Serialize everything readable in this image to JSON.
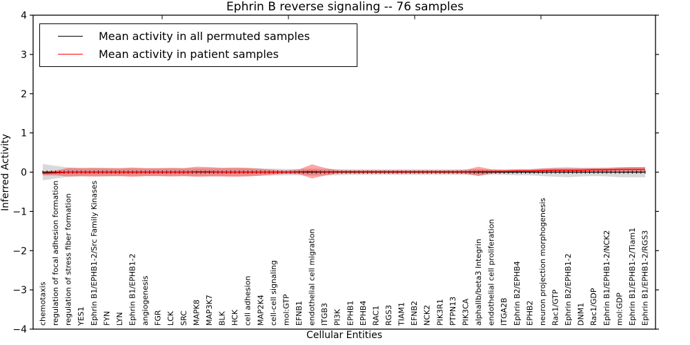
{
  "chart_data": {
    "type": "line",
    "title": "Ephrin B reverse signaling -- 76 samples",
    "xlabel": "Cellular Entities",
    "ylabel": "Inferred Activity",
    "ylim": [
      -4,
      4
    ],
    "yticks": [
      4,
      3,
      2,
      1,
      0,
      -1,
      -2,
      -3,
      -4
    ],
    "grid": false,
    "legend_position": "upper left",
    "categories": [
      "chemotaxis",
      "regulation of focal adhesion formation",
      "regulation of stress fiber formation",
      "YES1",
      "Ephrin B1/EPHB1-2/Src Family Kinases",
      "FYN",
      "LYN",
      "Ephrin B1/EPHB1-2",
      "angiogenesis",
      "FGR",
      "LCK",
      "SRC",
      "MAPK8",
      "MAP3K7",
      "BLK",
      "HCK",
      "cell adhesion",
      "MAP2K4",
      "cell-cell signaling",
      "mol:GTP",
      "EFNB1",
      "endothelial cell migration",
      "ITGB3",
      "PI3K",
      "EPHB1",
      "EPHB4",
      "RAC1",
      "RGS3",
      "TIAM1",
      "EFNB2",
      "NCK2",
      "PIK3R1",
      "PTPN13",
      "PIK3CA",
      "alphaIIb/beta3 Integrin",
      "endothelial cell proliferation",
      "ITGA2B",
      "Ephrin B2/EPHB4",
      "EPHB2",
      "neuron projection morphogenesis",
      "Rac1/GTP",
      "Ephrin B2/EPHB1-2",
      "DNM1",
      "Rac1/GDP",
      "Ephrin B1/EPHB1-2/NCK2",
      "mol:GDP",
      "Ephrin B1/EPHB1-2/Tiam1",
      "Ephrin B1/EPHB1-2/RGS3"
    ],
    "series": [
      {
        "name": "Mean activity in all permuted samples",
        "color": "#000000",
        "band_color": "rgba(0,0,0,0.15)",
        "mean": [
          0,
          0,
          0,
          0,
          0,
          0,
          0,
          0,
          0,
          0,
          0,
          0,
          0,
          0,
          0,
          0,
          0,
          0,
          0,
          0,
          0,
          0,
          0,
          0,
          0,
          0,
          0,
          0,
          0,
          0,
          0,
          0,
          0,
          0,
          0,
          0,
          0,
          0,
          0,
          0,
          0,
          0,
          0,
          0,
          0,
          0,
          0,
          0
        ],
        "upper": [
          0.21,
          0.16,
          0.12,
          0.11,
          0.11,
          0.11,
          0.1,
          0.1,
          0.1,
          0.1,
          0.1,
          0.1,
          0.1,
          0.1,
          0.1,
          0.1,
          0.1,
          0.09,
          0.09,
          0.08,
          0.08,
          0.09,
          0.08,
          0.08,
          0.07,
          0.07,
          0.07,
          0.07,
          0.07,
          0.07,
          0.07,
          0.07,
          0.07,
          0.07,
          0.08,
          0.07,
          0.07,
          0.08,
          0.08,
          0.1,
          0.12,
          0.13,
          0.11,
          0.1,
          0.11,
          0.13,
          0.13,
          0.13
        ],
        "lower": [
          -0.21,
          -0.16,
          -0.12,
          -0.11,
          -0.11,
          -0.11,
          -0.1,
          -0.1,
          -0.1,
          -0.1,
          -0.1,
          -0.1,
          -0.1,
          -0.1,
          -0.1,
          -0.1,
          -0.1,
          -0.09,
          -0.09,
          -0.08,
          -0.08,
          -0.09,
          -0.08,
          -0.08,
          -0.07,
          -0.07,
          -0.07,
          -0.07,
          -0.07,
          -0.07,
          -0.07,
          -0.07,
          -0.07,
          -0.07,
          -0.08,
          -0.07,
          -0.07,
          -0.08,
          -0.08,
          -0.1,
          -0.12,
          -0.13,
          -0.11,
          -0.1,
          -0.11,
          -0.13,
          -0.13,
          -0.13
        ]
      },
      {
        "name": "Mean activity in patient samples",
        "color": "#ff0000",
        "band_color": "rgba(255,0,0,0.35)",
        "mean": [
          -0.03,
          -0.02,
          0,
          0,
          0,
          0,
          0,
          0,
          0,
          0,
          0,
          0,
          0.01,
          0.01,
          0,
          0,
          0,
          0,
          0,
          0,
          0.01,
          0.02,
          0.01,
          0.01,
          0.01,
          0.01,
          0.01,
          0.01,
          0.01,
          0.01,
          0.01,
          0.01,
          0.01,
          0.01,
          0.02,
          0.02,
          0.02,
          0.03,
          0.03,
          0.04,
          0.05,
          0.05,
          0.05,
          0.06,
          0.06,
          0.07,
          0.07,
          0.07
        ],
        "upper": [
          0.02,
          0.04,
          0.11,
          0.1,
          0.11,
          0.1,
          0.1,
          0.12,
          0.1,
          0.1,
          0.11,
          0.1,
          0.14,
          0.13,
          0.11,
          0.12,
          0.11,
          0.09,
          0.06,
          0.04,
          0.07,
          0.2,
          0.11,
          0.05,
          0.05,
          0.05,
          0.05,
          0.05,
          0.05,
          0.05,
          0.05,
          0.05,
          0.05,
          0.06,
          0.14,
          0.07,
          0.06,
          0.07,
          0.07,
          0.09,
          0.1,
          0.1,
          0.1,
          0.11,
          0.11,
          0.12,
          0.13,
          0.13
        ],
        "lower": [
          -0.08,
          -0.08,
          -0.11,
          -0.1,
          -0.11,
          -0.1,
          -0.1,
          -0.12,
          -0.1,
          -0.1,
          -0.11,
          -0.1,
          -0.12,
          -0.11,
          -0.11,
          -0.12,
          -0.11,
          -0.09,
          -0.06,
          -0.04,
          -0.05,
          -0.16,
          -0.09,
          -0.03,
          -0.03,
          -0.03,
          -0.03,
          -0.03,
          -0.03,
          -0.03,
          -0.03,
          -0.03,
          -0.03,
          -0.04,
          -0.1,
          -0.03,
          -0.02,
          -0.01,
          -0.01,
          -0.01,
          0.0,
          0.0,
          0.0,
          0.01,
          0.01,
          0.02,
          0.01,
          0.01
        ]
      }
    ]
  }
}
